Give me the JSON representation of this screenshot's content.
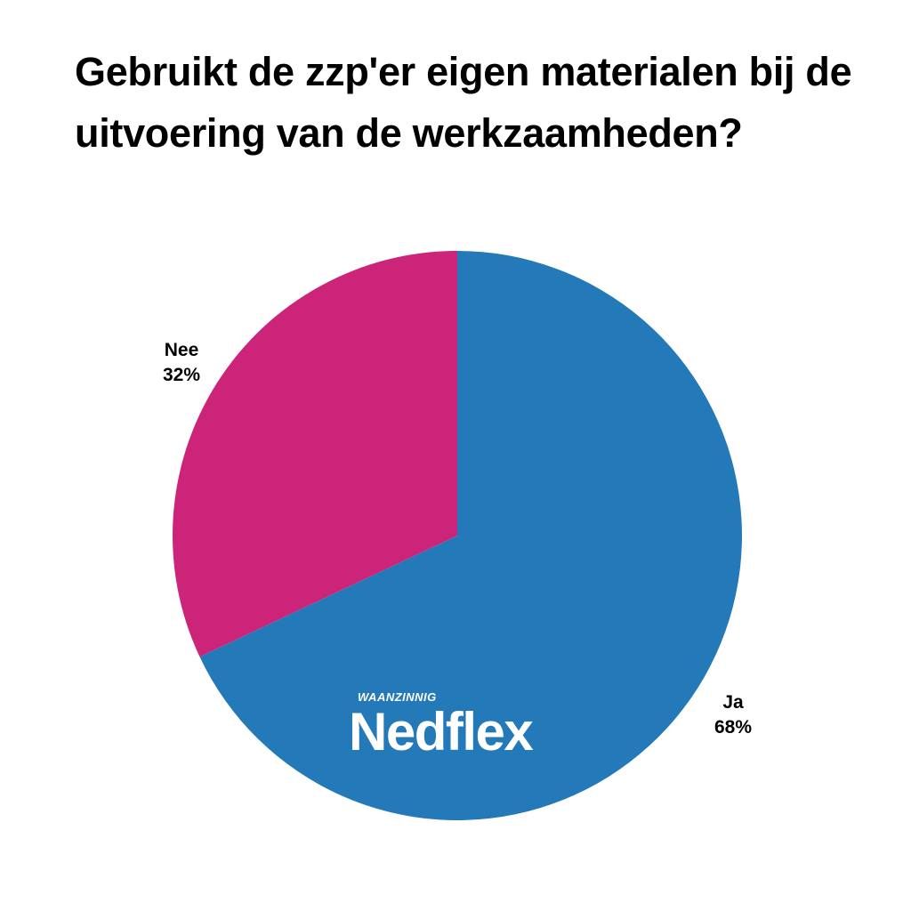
{
  "chart_data": {
    "type": "pie",
    "title": "Gebruikt de zzp'er eigen materialen bij de uitvoering van de werkzaamheden?",
    "slices": [
      {
        "label": "Ja",
        "value": 68,
        "value_label": "68%",
        "color": "#2479b8"
      },
      {
        "label": "Nee",
        "value": 32,
        "value_label": "32%",
        "color": "#cc2478"
      }
    ],
    "start_angle_deg": 0,
    "direction": "clockwise"
  },
  "logo": {
    "tagline": "WAANZINNIG",
    "brand": "Nedflex"
  }
}
